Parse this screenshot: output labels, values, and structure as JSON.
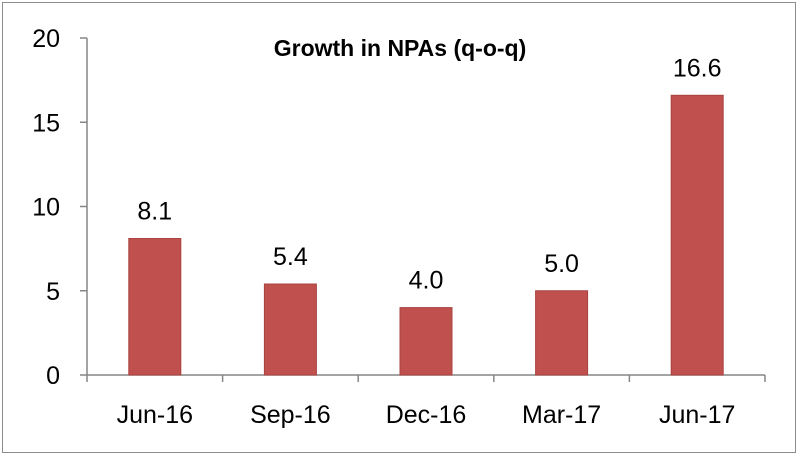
{
  "chart_data": {
    "type": "bar",
    "title": "Growth in NPAs (q-o-q)",
    "xlabel": "",
    "ylabel": "",
    "categories": [
      "Jun-16",
      "Sep-16",
      "Dec-16",
      "Mar-17",
      "Jun-17"
    ],
    "values": [
      8.1,
      5.4,
      4.0,
      5.0,
      16.6
    ],
    "data_labels": [
      "8.1",
      "5.4",
      "4.0",
      "5.0",
      "16.6"
    ],
    "ylim": [
      0,
      20
    ],
    "yticks": [
      0,
      5,
      10,
      15,
      20
    ],
    "grid": false,
    "legend": "none",
    "colors": {
      "bar": "#c0504d",
      "bar_edge": "#a84340",
      "axis": "#868686",
      "text": "#000000"
    }
  }
}
